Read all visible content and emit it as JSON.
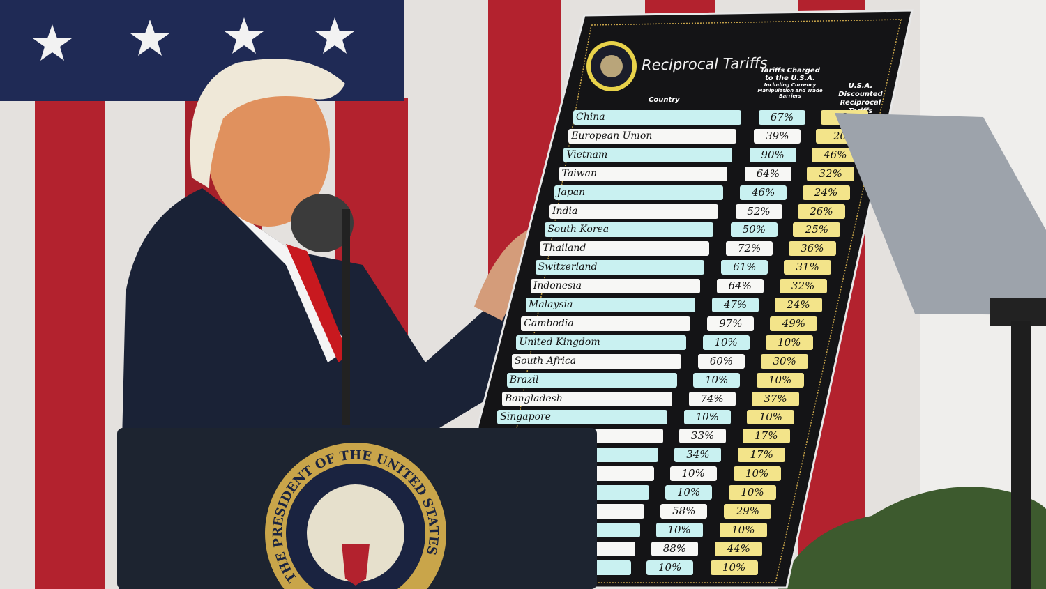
{
  "board": {
    "title": "Reciprocal Tariffs",
    "col_country": "Country",
    "col_charged": "Tariffs Charged to the U.S.A.",
    "col_charged_note": "Including Currency Manipulation and Trade Barriers",
    "col_discounted": "U.S.A. Discounted Reciprocal Tariffs",
    "rows": [
      {
        "country": "China",
        "charged": "67%",
        "discounted": "3"
      },
      {
        "country": "European Union",
        "charged": "39%",
        "discounted": "20"
      },
      {
        "country": "Vietnam",
        "charged": "90%",
        "discounted": "46%"
      },
      {
        "country": "Taiwan",
        "charged": "64%",
        "discounted": "32%"
      },
      {
        "country": "Japan",
        "charged": "46%",
        "discounted": "24%"
      },
      {
        "country": "India",
        "charged": "52%",
        "discounted": "26%"
      },
      {
        "country": "South Korea",
        "charged": "50%",
        "discounted": "25%"
      },
      {
        "country": "Thailand",
        "charged": "72%",
        "discounted": "36%"
      },
      {
        "country": "Switzerland",
        "charged": "61%",
        "discounted": "31%"
      },
      {
        "country": "Indonesia",
        "charged": "64%",
        "discounted": "32%"
      },
      {
        "country": "Malaysia",
        "charged": "47%",
        "discounted": "24%"
      },
      {
        "country": "Cambodia",
        "charged": "97%",
        "discounted": "49%"
      },
      {
        "country": "United Kingdom",
        "charged": "10%",
        "discounted": "10%"
      },
      {
        "country": "South Africa",
        "charged": "60%",
        "discounted": "30%"
      },
      {
        "country": "Brazil",
        "charged": "10%",
        "discounted": "10%"
      },
      {
        "country": "Bangladesh",
        "charged": "74%",
        "discounted": "37%"
      },
      {
        "country": "Singapore",
        "charged": "10%",
        "discounted": "10%"
      },
      {
        "country": "",
        "charged": "33%",
        "discounted": "17%"
      },
      {
        "country": "",
        "charged": "34%",
        "discounted": "17%"
      },
      {
        "country": "",
        "charged": "10%",
        "discounted": "10%"
      },
      {
        "country": "",
        "charged": "10%",
        "discounted": "10%"
      },
      {
        "country": "",
        "charged": "58%",
        "discounted": "29%"
      },
      {
        "country": "",
        "charged": "10%",
        "discounted": "10%"
      },
      {
        "country": "",
        "charged": "88%",
        "discounted": "44%"
      },
      {
        "country": "",
        "charged": "10%",
        "discounted": "10%"
      }
    ]
  },
  "podium_seal_text": "THE PRESIDENT OF THE UNITED STATES",
  "colors": {
    "cyan_row": "#c9f1f1",
    "white_row": "#f7f7f5",
    "yellow": "#f3e48a",
    "board": "#141416",
    "flag_red": "#b3222e",
    "flag_blue": "#1f2a55",
    "podium": "#1d2430",
    "gold": "#c9a54a"
  }
}
